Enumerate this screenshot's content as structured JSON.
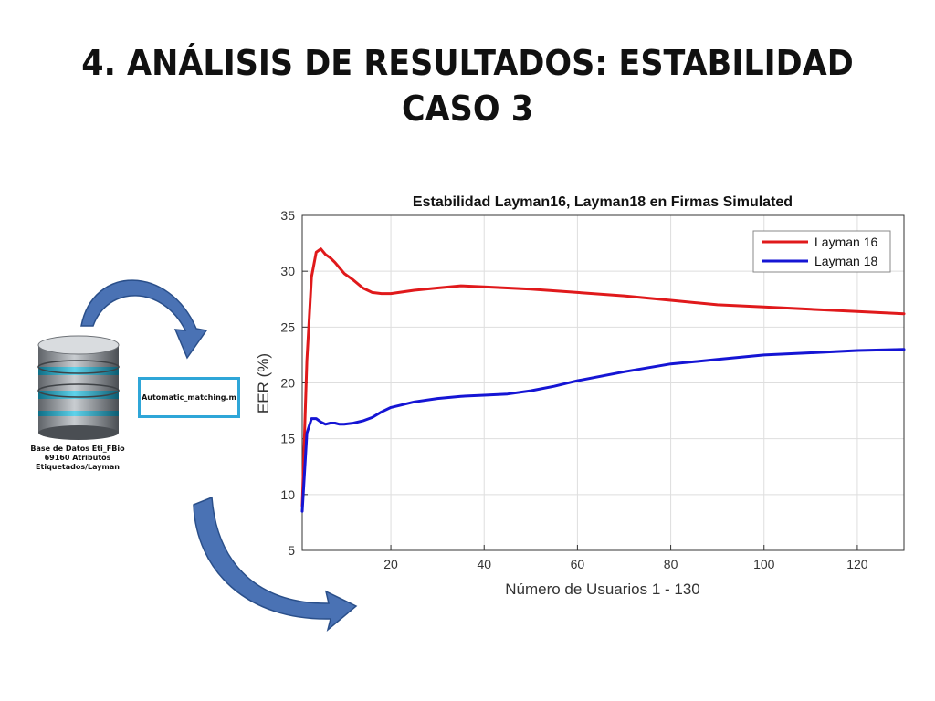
{
  "slide": {
    "title_line1": "4. ANÁLISIS DE RESULTADOS: ESTABILIDAD",
    "title_line2": "CASO 3"
  },
  "database": {
    "icon": "database-stack-icon",
    "caption_line1": "Base de Datos Eti_FBio",
    "caption_line2": "69160 Atributos",
    "caption_line3": "Etiquetados/Layman"
  },
  "process": {
    "label": "Automatic_matching.m"
  },
  "colors": {
    "arrow_fill": "#4a72b4",
    "arrow_stroke": "#2a4f8a",
    "box_border": "#2fa6d8",
    "layman16": "#e0191b",
    "layman18": "#1515d4",
    "grid": "#dedede"
  },
  "chart_data": {
    "type": "line",
    "title": "Estabilidad Layman16, Layman18 en Firmas Simulated",
    "xlabel": "Número de Usuarios 1 - 130",
    "ylabel": "EER (%)",
    "xlim": [
      1,
      130
    ],
    "ylim": [
      5,
      35
    ],
    "xticks": [
      20,
      40,
      60,
      80,
      100,
      120
    ],
    "yticks": [
      5,
      10,
      15,
      20,
      25,
      30,
      35
    ],
    "grid": true,
    "legend_position": "top-right",
    "series": [
      {
        "name": "Layman 16",
        "color": "#e0191b",
        "x": [
          1,
          2,
          3,
          4,
          5,
          6,
          7,
          8,
          9,
          10,
          12,
          14,
          16,
          18,
          20,
          25,
          30,
          35,
          40,
          50,
          60,
          70,
          80,
          90,
          100,
          110,
          120,
          130
        ],
        "y": [
          9,
          22,
          29.5,
          31.7,
          32.0,
          31.5,
          31.2,
          30.8,
          30.3,
          29.8,
          29.2,
          28.5,
          28.1,
          28.0,
          28.0,
          28.3,
          28.5,
          28.7,
          28.6,
          28.4,
          28.1,
          27.8,
          27.4,
          27.0,
          26.8,
          26.6,
          26.4,
          26.2
        ]
      },
      {
        "name": "Layman 18",
        "color": "#1515d4",
        "x": [
          1,
          2,
          3,
          4,
          5,
          6,
          7,
          8,
          9,
          10,
          12,
          14,
          16,
          18,
          20,
          25,
          30,
          35,
          40,
          45,
          50,
          55,
          60,
          70,
          80,
          90,
          100,
          110,
          120,
          130
        ],
        "y": [
          8.5,
          15.5,
          16.8,
          16.8,
          16.5,
          16.3,
          16.4,
          16.4,
          16.3,
          16.3,
          16.4,
          16.6,
          16.9,
          17.4,
          17.8,
          18.3,
          18.6,
          18.8,
          18.9,
          19.0,
          19.3,
          19.7,
          20.2,
          21.0,
          21.7,
          22.1,
          22.5,
          22.7,
          22.9,
          23.0
        ]
      }
    ]
  }
}
